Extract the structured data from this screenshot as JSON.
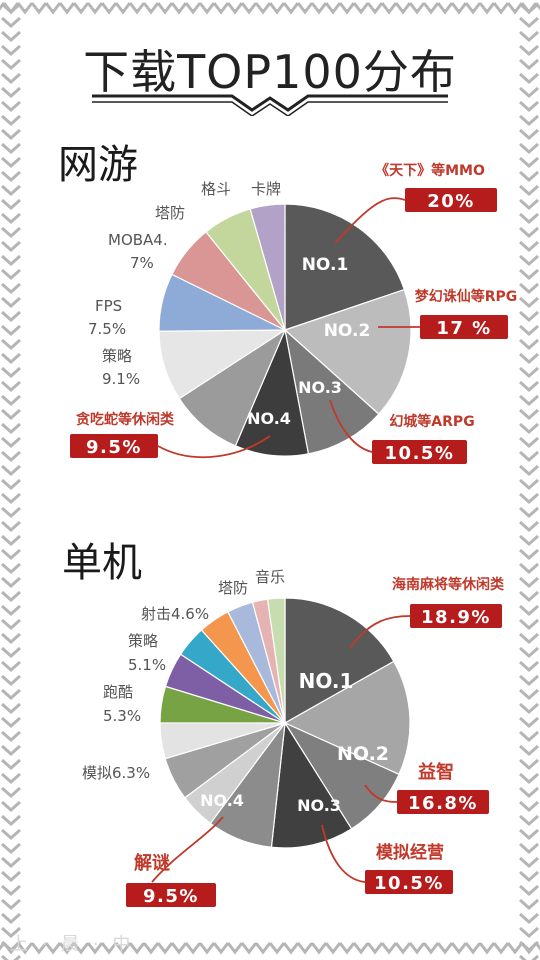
{
  "page": {
    "title": "下载TOP100分布",
    "watermark": "上 · 晨 · 中"
  },
  "colors": {
    "red_box": "#b71c1c",
    "leader": "#c0392b",
    "chevron": "#b5b5b5"
  },
  "chart_data": [
    {
      "type": "pie",
      "title": "网游",
      "slices": [
        {
          "label": "《天下》等MMO",
          "value": 20,
          "value_text": "20%",
          "rank": "NO.1",
          "color": "#595959",
          "highlight": true
        },
        {
          "label": "梦幻诛仙等RPG",
          "value": 17,
          "value_text": "17 %",
          "rank": "NO.2",
          "color": "#bcbcbc",
          "highlight": true
        },
        {
          "label": "幻城等ARPG",
          "value": 10.5,
          "value_text": "10.5%",
          "rank": "NO.3",
          "color": "#7a7a7a",
          "highlight": true
        },
        {
          "label": "贪吃蛇等休闲类",
          "value": 9.5,
          "value_text": "9.5%",
          "rank": "NO.4",
          "color": "#3d3d3d",
          "highlight": true
        },
        {
          "label": "",
          "value": 9.5,
          "color": "#9b9b9b",
          "highlight": false
        },
        {
          "label": "策略",
          "value": 9.1,
          "value_text": "9.1%",
          "color": "#e6e6e6",
          "highlight": false
        },
        {
          "label": "FPS",
          "value": 7.5,
          "value_text": "7.5%",
          "color": "#8eaad6",
          "highlight": false
        },
        {
          "label": "MOBA4.",
          "value": 7,
          "value_text": "7%",
          "color": "#d99694",
          "highlight": false
        },
        {
          "label": "塔防",
          "value": 6.4,
          "color": "#c3d69b",
          "highlight": false
        },
        {
          "label": "格斗",
          "value": 0,
          "color": "#c3d69b",
          "highlight": false
        },
        {
          "label": "卡牌",
          "value": 4.5,
          "color": "#b3a2c7",
          "highlight": false
        }
      ]
    },
    {
      "type": "pie",
      "title": "单机",
      "slices": [
        {
          "label": "海南麻将等休闲类",
          "value": 18.9,
          "value_text": "18.9%",
          "rank": "NO.1",
          "color": "#595959",
          "highlight": true
        },
        {
          "label": "益智",
          "value": 16.8,
          "value_text": "16.8%",
          "rank": "NO.2",
          "color": "#a6a6a6",
          "highlight": true
        },
        {
          "label": "模拟经营",
          "value": 10.5,
          "value_text": "10.5%",
          "rank": "NO.3",
          "color": "#7f7f7f",
          "highlight": true
        },
        {
          "label": "",
          "value": 12,
          "color": "#404040",
          "highlight": false
        },
        {
          "label": "解谜",
          "value": 9.5,
          "value_text": "9.5%",
          "rank": "NO.4",
          "color": "#8c8c8c",
          "highlight": true
        },
        {
          "label": "",
          "value": 5.2,
          "color": "#d0d0d0",
          "highlight": false
        },
        {
          "label": "模拟6.3%",
          "value": 6.3,
          "color": "#a0a0a0",
          "highlight": false
        },
        {
          "label": "",
          "value": 5.2,
          "color": "#e3e3e3",
          "highlight": false
        },
        {
          "label": "跑酷",
          "value": 5.3,
          "value_text": "5.3%",
          "color": "#77a344",
          "highlight": false
        },
        {
          "label": "策略",
          "value": 5.1,
          "value_text": "5.1%",
          "color": "#7e5fa5",
          "highlight": false
        },
        {
          "label": "射击4.6%",
          "value": 4.6,
          "color": "#35a8c9",
          "highlight": false
        },
        {
          "label": "",
          "value": 4.6,
          "color": "#f5964f",
          "highlight": false
        },
        {
          "label": "塔防",
          "value": 3.8,
          "color": "#a9b9dc",
          "highlight": false
        },
        {
          "label": "",
          "value": 2.2,
          "color": "#e6b3b3",
          "highlight": false
        },
        {
          "label": "音乐",
          "value": 2.5,
          "color": "#c7ddb0",
          "highlight": false
        }
      ]
    }
  ]
}
